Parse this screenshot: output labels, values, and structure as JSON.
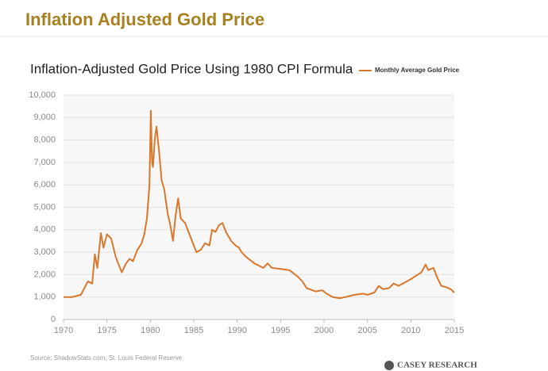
{
  "page_title": "Inflation Adjusted Gold Price",
  "logo": "CASEY RESEARCH",
  "chart_data": {
    "type": "line",
    "title": "Inflation-Adjusted Gold Price Using 1980 CPI Formula",
    "source": "Source: ShadowStats.com, St. Louis Federal Reserve",
    "legend": "top-right",
    "grid": true,
    "xlim": [
      1970,
      2015
    ],
    "xticks": [
      1970,
      1975,
      1980,
      1985,
      1990,
      1995,
      2000,
      2005,
      2010,
      2015
    ],
    "ylim": [
      0,
      10000
    ],
    "yticks": [
      0,
      {
        "value": 1000,
        "label": "1,000"
      },
      {
        "value": 2000,
        "label": "2,000"
      },
      {
        "value": 3000,
        "label": "3,000"
      },
      {
        "value": 4000,
        "label": "4,000"
      },
      {
        "value": 5000,
        "label": "5,000"
      },
      {
        "value": 6000,
        "label": "6,000"
      },
      {
        "value": 7000,
        "label": "7,000"
      },
      {
        "value": 8000,
        "label": "8,000"
      },
      {
        "value": 9000,
        "label": "9,000"
      },
      {
        "value": 10000,
        "label": "10,000"
      }
    ],
    "x": [
      1970,
      1971,
      1972,
      1972.8,
      1973.3,
      1973.6,
      1973.9,
      1974.3,
      1974.6,
      1975,
      1975.5,
      1976,
      1976.7,
      1977.2,
      1977.6,
      1978,
      1978.5,
      1979,
      1979.3,
      1979.6,
      1979.9,
      1980.05,
      1980.2,
      1980.3,
      1980.5,
      1980.7,
      1981,
      1981.3,
      1981.6,
      1982,
      1982.3,
      1982.6,
      1982.9,
      1983.2,
      1983.5,
      1984,
      1984.5,
      1985,
      1985.3,
      1985.8,
      1986.3,
      1986.8,
      1987.1,
      1987.5,
      1987.9,
      1988.3,
      1988.7,
      1989.3,
      1989.8,
      1990.2,
      1990.5,
      1991,
      1992,
      1993,
      1993.5,
      1994,
      1995,
      1996,
      1997,
      1997.5,
      1998,
      1999,
      1999.8,
      2000.3,
      2001,
      2001.8,
      2002.5,
      2003.5,
      2004.5,
      2005,
      2005.8,
      2006.3,
      2006.8,
      2007.5,
      2008,
      2008.6,
      2009.3,
      2010,
      2010.6,
      2011.2,
      2011.7,
      2012,
      2012.6,
      2013,
      2013.5,
      2014,
      2014.6,
      2015
    ],
    "series": [
      {
        "name": "Monthly Average Gold Price",
        "color": "#d9782d",
        "values": [
          1000,
          1000,
          1100,
          1700,
          1600,
          2900,
          2300,
          3850,
          3200,
          3800,
          3600,
          2800,
          2100,
          2500,
          2700,
          2600,
          3100,
          3400,
          3800,
          4500,
          6000,
          9300,
          7000,
          6800,
          8000,
          8600,
          7500,
          6200,
          5800,
          4700,
          4200,
          3500,
          4600,
          5400,
          4500,
          4300,
          3800,
          3300,
          3000,
          3100,
          3400,
          3300,
          4000,
          3900,
          4200,
          4300,
          3900,
          3500,
          3300,
          3200,
          3000,
          2800,
          2500,
          2300,
          2500,
          2300,
          2250,
          2200,
          1900,
          1700,
          1400,
          1250,
          1300,
          1150,
          1000,
          950,
          1000,
          1100,
          1150,
          1100,
          1200,
          1500,
          1350,
          1400,
          1600,
          1500,
          1650,
          1800,
          1950,
          2100,
          2450,
          2200,
          2300,
          1900,
          1500,
          1450,
          1350,
          1200
        ]
      }
    ]
  }
}
